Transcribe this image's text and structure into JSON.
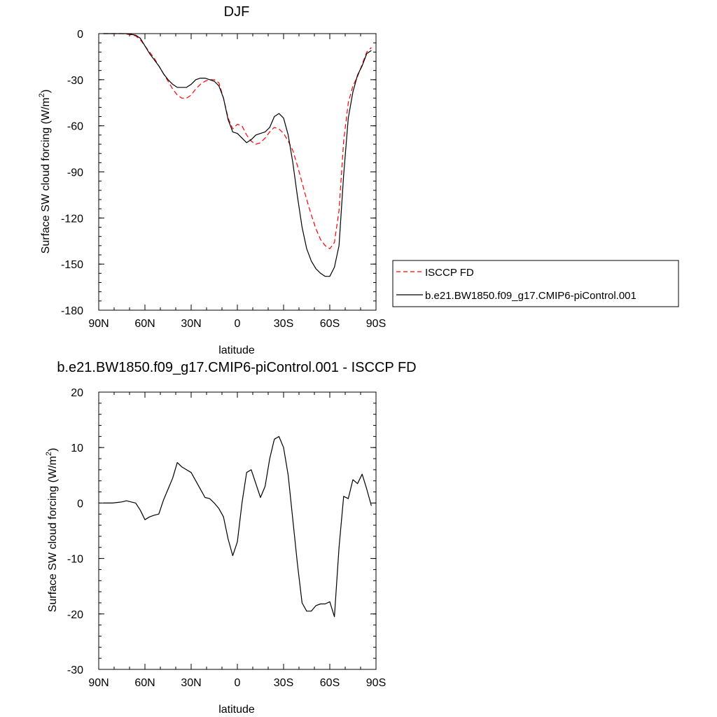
{
  "chart_data": [
    {
      "type": "line",
      "title": "DJF",
      "xlabel": "latitude",
      "ylabel": "Surface SW cloud forcing (W/m",
      "ylabel_sup": "2",
      "ylabel_end": ")",
      "xlim": [
        -90,
        90
      ],
      "ylim": [
        -180,
        0
      ],
      "x_ticks": [
        {
          "v": -90,
          "label": "90N"
        },
        {
          "v": -60,
          "label": "60N"
        },
        {
          "v": -30,
          "label": "30N"
        },
        {
          "v": 0,
          "label": "0"
        },
        {
          "v": 30,
          "label": "30S"
        },
        {
          "v": 60,
          "label": "60S"
        },
        {
          "v": 90,
          "label": "90S"
        }
      ],
      "y_ticks": [
        {
          "v": 0,
          "label": "0"
        },
        {
          "v": -30,
          "label": "-30"
        },
        {
          "v": -60,
          "label": "-60"
        },
        {
          "v": -90,
          "label": "-90"
        },
        {
          "v": -120,
          "label": "-120"
        },
        {
          "v": -150,
          "label": "-150"
        },
        {
          "v": -180,
          "label": "-180"
        }
      ],
      "legend_position": "right",
      "series": [
        {
          "name": "ISCCP FD",
          "color": "#ff0000",
          "dash": "dashed",
          "x": [
            -87,
            -84,
            -81,
            -78,
            -75,
            -72,
            -69,
            -66,
            -63,
            -60,
            -57,
            -54,
            -51,
            -48,
            -45,
            -42,
            -39,
            -36,
            -33,
            -30,
            -27,
            -24,
            -21,
            -18,
            -15,
            -12,
            -9,
            -6,
            -3,
            0,
            3,
            6,
            9,
            12,
            15,
            18,
            21,
            24,
            27,
            30,
            33,
            36,
            39,
            42,
            45,
            48,
            51,
            54,
            57,
            60,
            63,
            66,
            69,
            72,
            75,
            78,
            81,
            84,
            87
          ],
          "y": [
            0,
            0,
            0,
            0,
            0,
            -0.3,
            -0.8,
            -1.5,
            -4,
            -8,
            -12,
            -16,
            -21,
            -26,
            -31,
            -36,
            -40,
            -42,
            -42,
            -40,
            -36,
            -33,
            -31,
            -30,
            -30,
            -32,
            -42,
            -55,
            -62,
            -59,
            -60,
            -66,
            -70,
            -72,
            -71,
            -68,
            -64,
            -61,
            -62,
            -65,
            -70,
            -76,
            -86,
            -97,
            -108,
            -118,
            -127,
            -134,
            -138,
            -140,
            -136,
            -115,
            -70,
            -45,
            -34,
            -28,
            -20,
            -12,
            -9
          ]
        },
        {
          "name": "b.e21.BW1850.f09_g17.CMIP6-piControl.001",
          "color": "#000000",
          "dash": "solid",
          "x": [
            -87,
            -84,
            -81,
            -78,
            -75,
            -72,
            -69,
            -66,
            -63,
            -60,
            -57,
            -54,
            -51,
            -48,
            -45,
            -42,
            -39,
            -36,
            -33,
            -30,
            -27,
            -24,
            -21,
            -18,
            -15,
            -12,
            -9,
            -6,
            -3,
            0,
            3,
            6,
            9,
            12,
            15,
            18,
            21,
            24,
            27,
            30,
            33,
            36,
            39,
            42,
            45,
            48,
            51,
            54,
            57,
            60,
            63,
            66,
            69,
            72,
            75,
            78,
            81,
            84,
            87
          ],
          "y": [
            0,
            0,
            0,
            0,
            0,
            0,
            -0.5,
            -1,
            -3,
            -8,
            -13,
            -17,
            -21,
            -26,
            -30,
            -33,
            -35,
            -35,
            -35,
            -33,
            -30,
            -29,
            -29,
            -30,
            -31,
            -34,
            -42,
            -56,
            -64,
            -65,
            -68,
            -71,
            -69,
            -66,
            -65,
            -64,
            -61,
            -54,
            -52,
            -55,
            -66,
            -84,
            -106,
            -126,
            -140,
            -148,
            -153,
            -156,
            -158,
            -158,
            -152,
            -138,
            -92,
            -55,
            -38,
            -27,
            -21,
            -13,
            -11
          ]
        }
      ]
    },
    {
      "type": "line",
      "title": "b.e21.BW1850.f09_g17.CMIP6-piControl.001 - ISCCP FD",
      "xlabel": "latitude",
      "ylabel": "Surface SW cloud forcing (W/m",
      "ylabel_sup": "2",
      "ylabel_end": ")",
      "xlim": [
        -90,
        90
      ],
      "ylim": [
        -30,
        20
      ],
      "x_ticks": [
        {
          "v": -90,
          "label": "90N"
        },
        {
          "v": -60,
          "label": "60N"
        },
        {
          "v": -30,
          "label": "30N"
        },
        {
          "v": 0,
          "label": "0"
        },
        {
          "v": 30,
          "label": "30S"
        },
        {
          "v": 60,
          "label": "60S"
        },
        {
          "v": 90,
          "label": "90S"
        }
      ],
      "y_ticks": [
        {
          "v": 20,
          "label": "20"
        },
        {
          "v": 10,
          "label": "10"
        },
        {
          "v": 0,
          "label": "0"
        },
        {
          "v": -10,
          "label": "-10"
        },
        {
          "v": -20,
          "label": "-20"
        },
        {
          "v": -30,
          "label": "-30"
        }
      ],
      "series": [
        {
          "color": "#000000",
          "dash": "solid",
          "x": [
            -87,
            -84,
            -81,
            -78,
            -75,
            -72,
            -69,
            -66,
            -63,
            -60,
            -57,
            -54,
            -51,
            -48,
            -45,
            -42,
            -39,
            -36,
            -33,
            -30,
            -27,
            -24,
            -21,
            -18,
            -15,
            -12,
            -9,
            -6,
            -3,
            0,
            3,
            6,
            9,
            12,
            15,
            18,
            21,
            24,
            27,
            30,
            33,
            36,
            39,
            42,
            45,
            48,
            51,
            54,
            57,
            60,
            63,
            66,
            69,
            72,
            75,
            78,
            81,
            84,
            87
          ],
          "y": [
            0,
            0,
            0,
            0.1,
            0.2,
            0.4,
            0.2,
            0,
            -1.3,
            -3,
            -2.5,
            -2.2,
            -2,
            0.5,
            2.5,
            4.5,
            7.3,
            6.5,
            6,
            5.5,
            4,
            2.5,
            1,
            0.8,
            0,
            -1,
            -2.5,
            -6.5,
            -9.5,
            -7,
            0,
            5.5,
            6,
            3.5,
            1,
            3,
            8,
            11.5,
            12,
            10,
            5,
            -3,
            -11,
            -18,
            -19.5,
            -19.5,
            -18.5,
            -18.2,
            -18.2,
            -17.8,
            -20.5,
            -8,
            1.2,
            0.8,
            4.2,
            3.5,
            5.2,
            2.5,
            -0.5
          ]
        }
      ]
    }
  ]
}
